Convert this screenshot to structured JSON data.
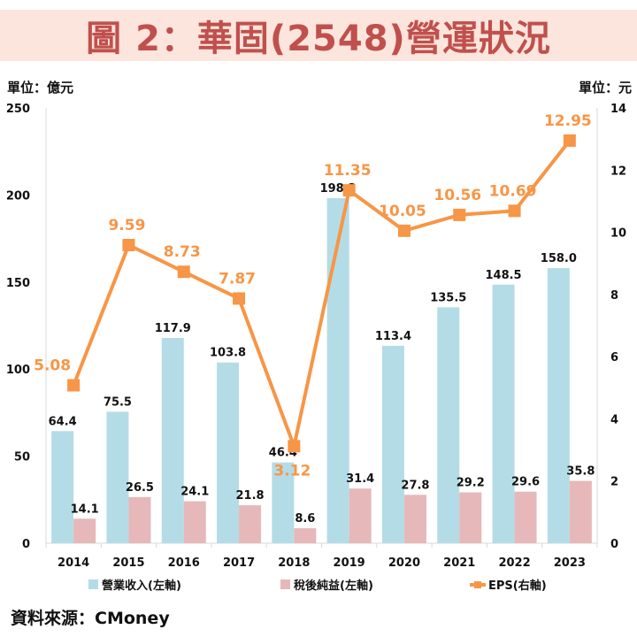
{
  "title": "圖 2：華固(2548)營運狀況",
  "left_unit": "單位：億元",
  "right_unit": "單位：元",
  "source": "資料來源：CMoney",
  "chart_data": {
    "type": "bar+line",
    "categories": [
      "2014",
      "2015",
      "2016",
      "2017",
      "2018",
      "2019",
      "2020",
      "2021",
      "2022",
      "2023"
    ],
    "series": [
      {
        "name": "營業收入(左軸)",
        "type": "bar",
        "axis": "left",
        "color": "#b4dce6",
        "values": [
          64.4,
          75.5,
          117.9,
          103.8,
          46.4,
          198.2,
          113.4,
          135.5,
          148.5,
          158.0
        ]
      },
      {
        "name": "稅後純益(左軸)",
        "type": "bar",
        "axis": "left",
        "color": "#e6b8b9",
        "values": [
          14.1,
          26.5,
          24.1,
          21.8,
          8.6,
          31.4,
          27.8,
          29.2,
          29.6,
          35.8
        ]
      },
      {
        "name": "EPS(右軸)",
        "type": "line",
        "axis": "right",
        "color": "#f79646",
        "values": [
          5.08,
          9.59,
          8.73,
          7.87,
          3.12,
          11.35,
          10.05,
          10.56,
          10.69,
          12.95
        ]
      }
    ],
    "left_axis": {
      "range": [
        0,
        250
      ],
      "ticks": [
        "0",
        "50",
        "100",
        "150",
        "200",
        "250"
      ]
    },
    "right_axis": {
      "range": [
        0,
        14
      ],
      "ticks": [
        "0",
        "2",
        "4",
        "6",
        "8",
        "10",
        "12",
        "14"
      ]
    },
    "legend_position": "bottom",
    "grid": false
  }
}
